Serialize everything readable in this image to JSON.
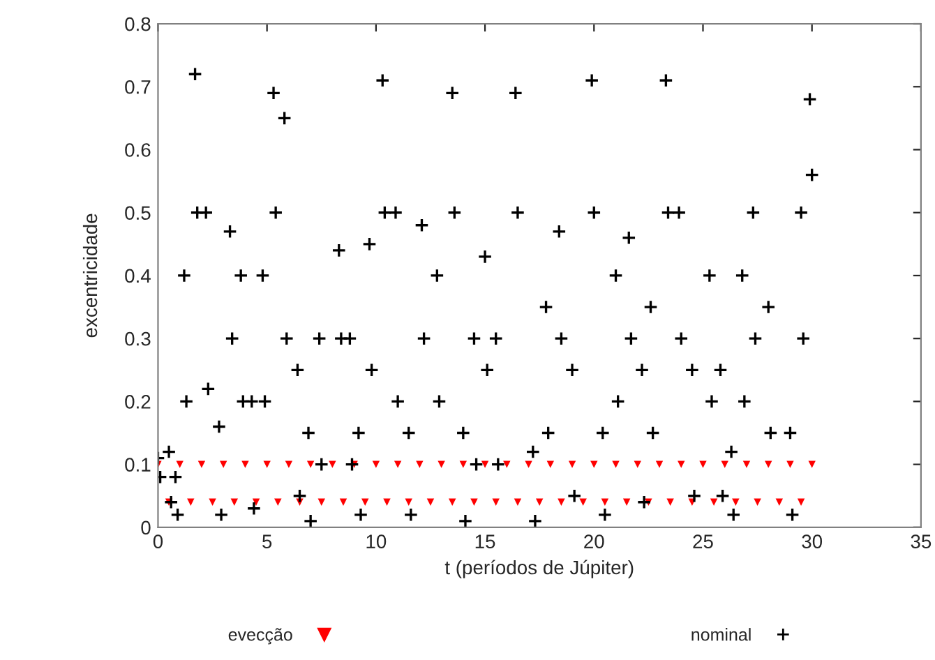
{
  "chart_data": {
    "type": "scatter",
    "xlabel": "t (períodos de Júpiter)",
    "ylabel": "excentricidade",
    "xlim": [
      0,
      35
    ],
    "xticks": [
      0,
      5,
      10,
      15,
      20,
      25,
      30,
      35
    ],
    "ylim": [
      0,
      0.8
    ],
    "yticks": [
      0,
      0.1,
      0.2,
      0.3,
      0.4,
      0.5,
      0.6,
      0.7,
      0.8
    ],
    "grid": false,
    "legend": "bottom",
    "series": [
      {
        "name": "evecção",
        "color": "#ff0000",
        "marker": "triangle",
        "x": [
          0,
          0.5,
          1,
          1.5,
          2,
          2.5,
          3,
          3.5,
          4,
          4.5,
          5,
          5.5,
          6,
          6.5,
          7,
          7.5,
          8,
          8.5,
          9,
          9.5,
          10,
          10.5,
          11,
          11.5,
          12,
          12.5,
          13,
          13.5,
          14,
          14.5,
          15,
          15.5,
          16,
          16.5,
          17,
          17.5,
          18,
          18.5,
          19,
          19.5,
          20,
          20.5,
          21,
          21.5,
          22,
          22.5,
          23,
          23.5,
          24,
          24.5,
          25,
          25.5,
          26,
          26.5,
          27,
          27.5,
          28,
          28.5,
          29,
          29.5,
          30
        ],
        "values": [
          0.1,
          0.04,
          0.1,
          0.04,
          0.1,
          0.04,
          0.1,
          0.04,
          0.1,
          0.04,
          0.1,
          0.04,
          0.1,
          0.04,
          0.1,
          0.04,
          0.1,
          0.04,
          0.1,
          0.04,
          0.1,
          0.04,
          0.1,
          0.04,
          0.1,
          0.04,
          0.1,
          0.04,
          0.1,
          0.04,
          0.1,
          0.04,
          0.1,
          0.04,
          0.1,
          0.04,
          0.1,
          0.04,
          0.1,
          0.04,
          0.1,
          0.04,
          0.1,
          0.04,
          0.1,
          0.04,
          0.1,
          0.04,
          0.1,
          0.04,
          0.1,
          0.04,
          0.1,
          0.04,
          0.1,
          0.04,
          0.1,
          0.04,
          0.1,
          0.04,
          0.1
        ]
      },
      {
        "name": "nominal",
        "color": "#000000",
        "marker": "cross",
        "x": [
          0,
          0.1,
          0.5,
          0.6,
          0.8,
          0.9,
          1.2,
          1.3,
          1.7,
          1.8,
          2.2,
          2.3,
          2.8,
          2.9,
          3.3,
          3.4,
          3.8,
          3.9,
          4.3,
          4.4,
          4.8,
          4.9,
          5.3,
          5.4,
          5.8,
          5.9,
          6.4,
          6.5,
          6.9,
          7.0,
          7.4,
          7.5,
          8.3,
          8.4,
          8.8,
          8.9,
          9.2,
          9.3,
          9.7,
          9.8,
          10.3,
          10.4,
          10.9,
          11.0,
          11.5,
          11.6,
          12.1,
          12.2,
          12.8,
          12.9,
          13.5,
          13.6,
          14.0,
          14.1,
          14.5,
          14.6,
          15.0,
          15.1,
          15.5,
          15.6,
          16.4,
          16.5,
          17.2,
          17.3,
          17.8,
          17.9,
          18.4,
          18.5,
          19.0,
          19.1,
          19.9,
          20.0,
          20.4,
          20.5,
          21.0,
          21.1,
          21.6,
          21.7,
          22.2,
          22.3,
          22.6,
          22.7,
          23.3,
          23.4,
          23.9,
          24.0,
          24.5,
          24.6,
          25.3,
          25.4,
          25.8,
          25.9,
          26.3,
          26.4,
          26.8,
          26.9,
          27.3,
          27.4,
          28.0,
          28.1,
          29.0,
          29.1,
          29.5,
          29.6,
          29.9,
          30.0
        ],
        "values": [
          0.11,
          0.08,
          0.12,
          0.04,
          0.08,
          0.02,
          0.4,
          0.2,
          0.72,
          0.5,
          0.5,
          0.22,
          0.16,
          0.02,
          0.47,
          0.3,
          0.4,
          0.2,
          0.2,
          0.03,
          0.4,
          0.2,
          0.69,
          0.5,
          0.65,
          0.3,
          0.25,
          0.05,
          0.15,
          0.01,
          0.3,
          0.1,
          0.44,
          0.3,
          0.3,
          0.1,
          0.15,
          0.02,
          0.45,
          0.25,
          0.71,
          0.5,
          0.5,
          0.2,
          0.15,
          0.02,
          0.48,
          0.3,
          0.4,
          0.2,
          0.69,
          0.5,
          0.15,
          0.01,
          0.3,
          0.1,
          0.43,
          0.25,
          0.3,
          0.1,
          0.69,
          0.5,
          0.12,
          0.01,
          0.35,
          0.15,
          0.47,
          0.3,
          0.25,
          0.05,
          0.71,
          0.5,
          0.15,
          0.02,
          0.4,
          0.2,
          0.46,
          0.3,
          0.25,
          0.04,
          0.35,
          0.15,
          0.71,
          0.5,
          0.5,
          0.3,
          0.25,
          0.05,
          0.4,
          0.2,
          0.25,
          0.05,
          0.12,
          0.02,
          0.4,
          0.2,
          0.5,
          0.3,
          0.35,
          0.15,
          0.15,
          0.02,
          0.5,
          0.3,
          0.68,
          0.56
        ]
      }
    ]
  }
}
